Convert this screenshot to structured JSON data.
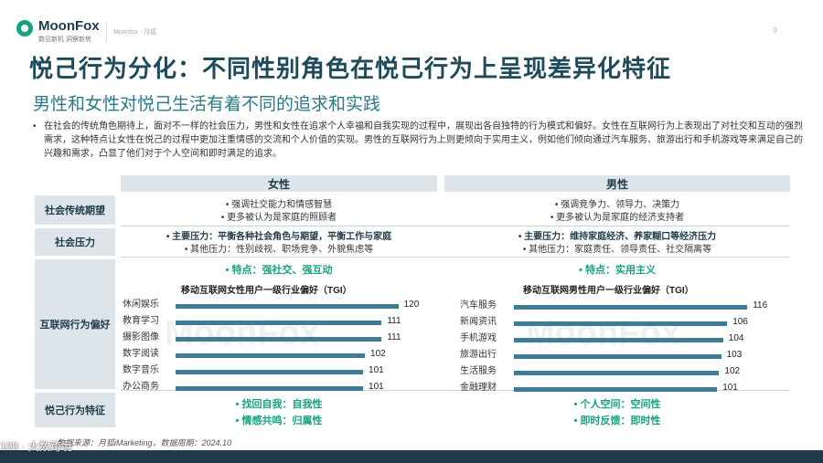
{
  "header": {
    "brand": "MoonFox",
    "tagline": "数见新机 洞察新势",
    "link": "Moonfox · 月狐",
    "page_number": "9"
  },
  "title": "悦己行为分化：不同性别角色在悦己行为上呈现差异化特征",
  "subtitle": "男性和女性对悦己生活有着不同的追求和实践",
  "intro": "在社会的传统角色期待上，面对不一样的社会压力，男性和女性在追求个人幸福和自我实现的过程中，展现出各自独特的行为模式和偏好。女性在互联网行为上表现出了对社交和互动的强烈需求，这种特点让女性在悦己的过程中更加注重情感的交流和个人价值的实现。男性的互联网行为上则更倾向于实用主义，例如他们倾向通过汽车服务、旅游出行和手机游戏等来满足自己的兴趣和需求，凸显了他们对于个人空间和即时满足的追求。",
  "table": {
    "col_female": "女性",
    "col_male": "男性",
    "rows": {
      "expectation": "社会传统期望",
      "pressure": "社会压力",
      "internet": "互联网行为偏好",
      "behavior": "悦己行为特征"
    },
    "female": {
      "expectation": [
        "•  强调社交能力和情感智慧",
        "•  更多被认为是家庭的照顾者"
      ],
      "pressure": [
        "•  主要压力：平衡各种社会角色与期望，平衡工作与家庭",
        "•  其他压力：性别歧视、职场竞争、外貌焦虑等"
      ],
      "feature": "•  特点：强社交、强互动",
      "behavior": [
        "•  找回自我：自我性",
        "•  情感共鸣：归属性"
      ]
    },
    "male": {
      "expectation": [
        "•  强调竞争力、领导力、决策力",
        "•  更多被认为是家庭的经济支持者"
      ],
      "pressure": [
        "•  主要压力：维持家庭经济、养家糊口等经济压力",
        "•  其他压力：家庭责任、领导责任、社交隔离等"
      ],
      "feature": "•  特点：实用主义",
      "behavior": [
        "•  个人空间：空间性",
        "•  即时反馈：即时性"
      ]
    }
  },
  "chart_data": [
    {
      "type": "bar",
      "orientation": "horizontal",
      "title": "移动互联网女性用户一级行业偏好（TGI）",
      "categories": [
        "休闲娱乐",
        "教育学习",
        "摄影图像",
        "数字阅读",
        "数字音乐",
        "办公商务"
      ],
      "values": [
        120,
        111,
        111,
        102,
        101,
        101
      ],
      "bar_color": "#3d7b96",
      "grid": false
    },
    {
      "type": "bar",
      "orientation": "horizontal",
      "title": "移动互联网男性用户一级行业偏好（TGI）",
      "categories": [
        "汽车服务",
        "新闻资讯",
        "手机游戏",
        "旅游出行",
        "生活服务",
        "金融理财"
      ],
      "values": [
        116,
        106,
        104,
        103,
        102,
        101
      ],
      "bar_color": "#3d7b96",
      "grid": false
    }
  ],
  "watermark": "MoonFox",
  "source": "数据来源：月狐iMarketing，数据周期：2024.10",
  "corner_text": "100 · 大数跨境"
}
